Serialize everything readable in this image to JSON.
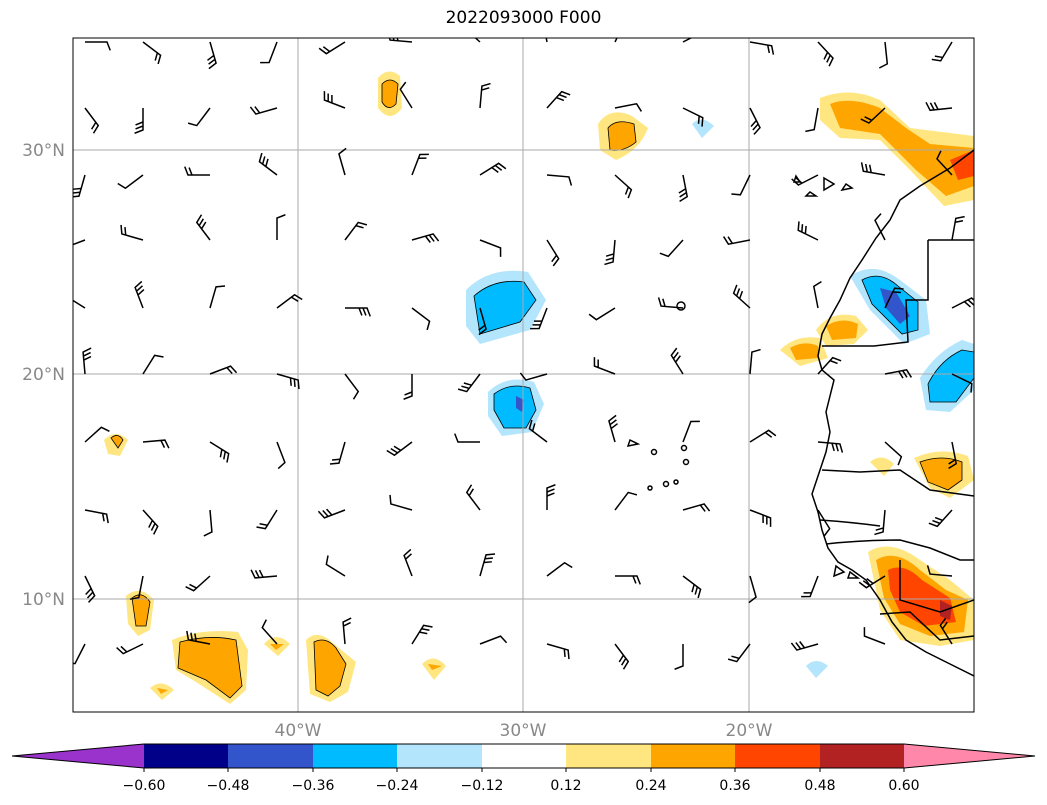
{
  "title": "2022093000 F000",
  "lat_labels": [
    "30°N",
    "20°N",
    "10°N"
  ],
  "lon_labels": [
    "40°W",
    "30°W",
    "20°W"
  ],
  "colorbar": {
    "colors": [
      "#9933cc",
      "#000088",
      "#3355cc",
      "#00bbff",
      "#b3e5fc",
      "#ffffff",
      "#ffe680",
      "#ffa500",
      "#ff4500",
      "#b22222",
      "#ff88aa"
    ],
    "labels": [
      "−0.60",
      "−0.48",
      "−0.36",
      "−0.24",
      "−0.12",
      "0.12",
      "0.24",
      "0.36",
      "0.48",
      "0.60"
    ]
  },
  "map": {
    "extent": {
      "lon": [
        -50,
        -10
      ],
      "lat": [
        5,
        35
      ]
    },
    "gridlines": {
      "lon": [
        -40,
        -30,
        -20
      ],
      "lat": [
        10,
        20,
        30
      ]
    }
  }
}
